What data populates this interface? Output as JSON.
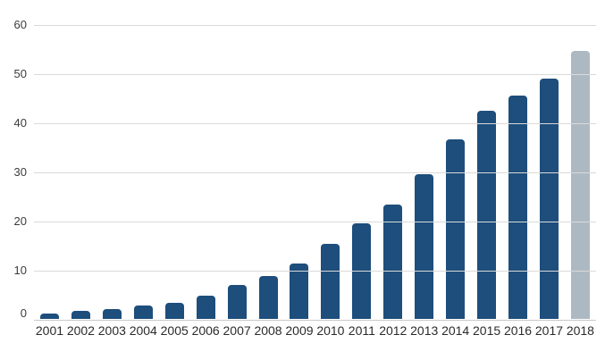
{
  "chart_data": {
    "type": "bar",
    "categories": [
      "2001",
      "2002",
      "2003",
      "2004",
      "2005",
      "2006",
      "2007",
      "2008",
      "2009",
      "2010",
      "2011",
      "2012",
      "2013",
      "2014",
      "2015",
      "2016",
      "2017",
      "2018"
    ],
    "values": [
      1.1,
      1.6,
      2.0,
      2.8,
      3.3,
      4.8,
      7.0,
      8.8,
      11.2,
      15.3,
      19.4,
      23.3,
      29.5,
      36.6,
      42.3,
      45.4,
      49.0,
      54.5
    ],
    "title": "",
    "xlabel": "",
    "ylabel": "",
    "ylim": [
      0,
      60
    ],
    "yticks": [
      0,
      10,
      20,
      30,
      40,
      50,
      60
    ],
    "grid": "horizontal-on",
    "legend": "none",
    "bar_color": "#1d4e7c",
    "highlight": {
      "index": 17,
      "category": "2018",
      "color": "#adb9c2"
    },
    "gridline_color": "#dadada",
    "axis_line_color": "#c9c9c9",
    "tick_label_color": "#3b3b3b"
  }
}
